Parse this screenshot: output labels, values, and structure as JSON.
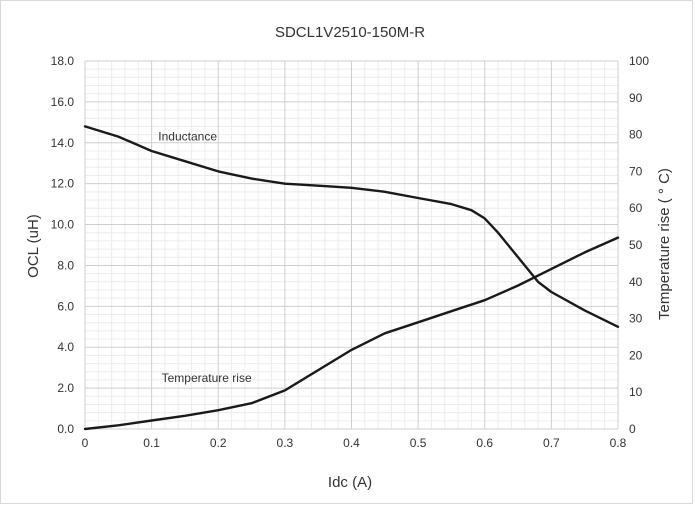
{
  "chart_data": {
    "type": "line",
    "title": "SDCL1V2510-150M-R",
    "xlabel": "Idc (A)",
    "ylabel": "OCL (uH)",
    "y2label": "Temperature rise ( ° C)",
    "xlim": [
      0,
      0.8
    ],
    "ylim": [
      0,
      18
    ],
    "y2lim": [
      0,
      100
    ],
    "x_ticks": [
      "0",
      "0.1",
      "0.2",
      "0.3",
      "0.4",
      "0.5",
      "0.6",
      "0.7",
      "0.8"
    ],
    "y_ticks": [
      "0.0",
      "2.0",
      "4.0",
      "6.0",
      "8.0",
      "10.0",
      "12.0",
      "14.0",
      "16.0",
      "18.0"
    ],
    "y2_ticks": [
      "0",
      "10",
      "20",
      "30",
      "40",
      "50",
      "60",
      "70",
      "80",
      "90",
      "100"
    ],
    "grid": true,
    "legend": "none",
    "series": [
      {
        "name": "Inductance",
        "axis": "left",
        "color": "#1a1a1a",
        "x": [
          0,
          0.05,
          0.1,
          0.15,
          0.2,
          0.25,
          0.3,
          0.35,
          0.4,
          0.45,
          0.5,
          0.55,
          0.58,
          0.6,
          0.62,
          0.65,
          0.68,
          0.7,
          0.75,
          0.8
        ],
        "y": [
          14.8,
          14.3,
          13.6,
          13.1,
          12.6,
          12.25,
          12.0,
          11.9,
          11.8,
          11.6,
          11.3,
          11.0,
          10.7,
          10.3,
          9.6,
          8.4,
          7.2,
          6.7,
          5.8,
          5.0
        ]
      },
      {
        "name": "Temperature rise",
        "axis": "right",
        "color": "#1a1a1a",
        "x": [
          0,
          0.05,
          0.1,
          0.15,
          0.2,
          0.25,
          0.3,
          0.35,
          0.4,
          0.45,
          0.5,
          0.55,
          0.6,
          0.65,
          0.7,
          0.75,
          0.8
        ],
        "y": [
          0,
          1,
          2.3,
          3.6,
          5.1,
          7,
          10.5,
          16,
          21.5,
          26,
          29,
          32,
          35,
          39,
          43.5,
          48,
          52
        ]
      }
    ],
    "annotations": [
      {
        "text": "Inductance",
        "x": 0.11,
        "y": 14.1,
        "axis": "left"
      },
      {
        "text": "Temperature rise",
        "x": 0.115,
        "y": 2.3,
        "axis": "left"
      }
    ]
  }
}
